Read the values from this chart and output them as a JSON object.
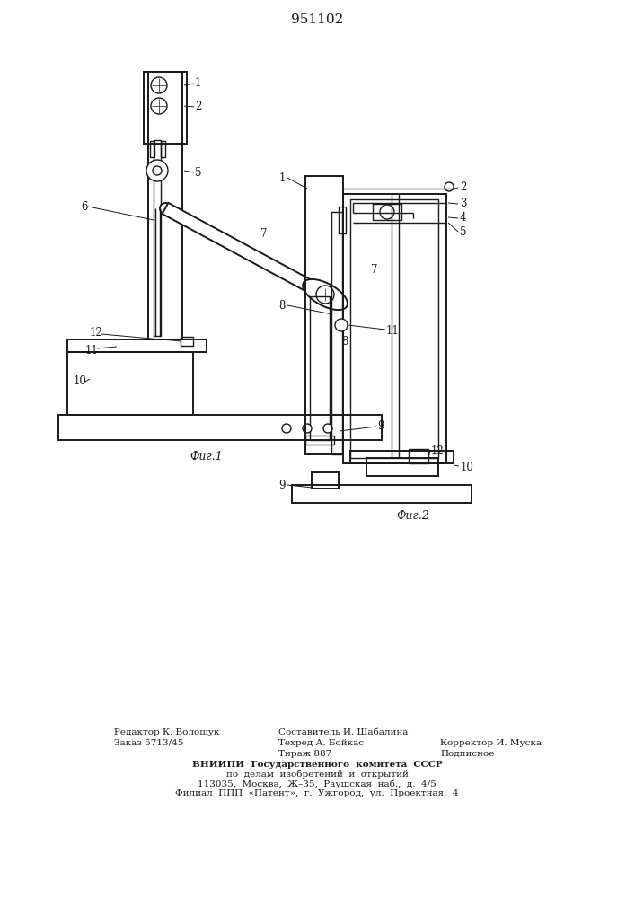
{
  "title": "951102",
  "title_fontsize": 11,
  "background_color": "#ffffff",
  "line_color": "#1a1a1a",
  "fig1_label": "Фиг.1",
  "fig2_label": "Фиг.2"
}
